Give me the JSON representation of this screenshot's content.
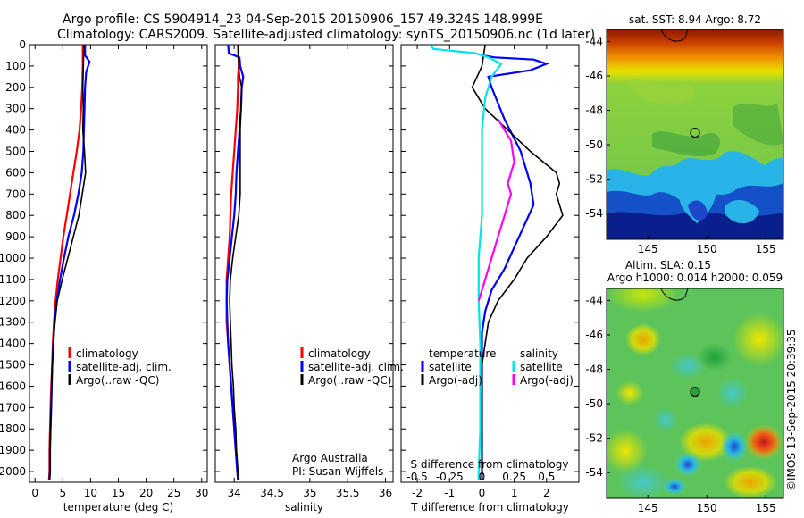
{
  "header": {
    "line1": "Argo profile: CS 5904914_23 04-Sep-2015 20150906_157 49.324S 148.999E",
    "line2": "Climatology: CARS2009. Satellite-adjusted climatology: synTS_20150906.nc (1d later)"
  },
  "credit": "©IMOS 13-Sep-2015 20:39:35",
  "notes": {
    "org": "Argo Australia",
    "pi": "PI: Susan Wijffels"
  },
  "colors": {
    "climatology": "#ff0000",
    "satellite": "#0000ff",
    "argo": "#000000",
    "cyan": "#00e5e5",
    "magenta": "#ff00ff"
  },
  "chart_data": [
    {
      "type": "line",
      "id": "temperature",
      "xlabel": "temperature (deg C)",
      "ylabel": "",
      "xlim": [
        -1,
        31
      ],
      "ylim": [
        0,
        2050
      ],
      "xticks": [
        0,
        5,
        10,
        15,
        20,
        25,
        30
      ],
      "yticks": [
        0,
        100,
        200,
        300,
        400,
        500,
        600,
        700,
        800,
        900,
        1000,
        1100,
        1200,
        1300,
        1400,
        1500,
        1600,
        1700,
        1800,
        1900,
        2000
      ],
      "legend": [
        "climatology",
        "satellite-adj. clim.",
        "Argo(..raw -QC)"
      ],
      "series": [
        {
          "name": "climatology",
          "color": "#ff0000",
          "points": [
            [
              8.6,
              0
            ],
            [
              8.6,
              100
            ],
            [
              8.5,
              200
            ],
            [
              8.3,
              300
            ],
            [
              8.0,
              400
            ],
            [
              7.5,
              500
            ],
            [
              6.9,
              600
            ],
            [
              6.3,
              700
            ],
            [
              5.7,
              800
            ],
            [
              5.1,
              900
            ],
            [
              4.6,
              1000
            ],
            [
              4.1,
              1100
            ],
            [
              3.7,
              1200
            ],
            [
              3.4,
              1300
            ],
            [
              3.2,
              1400
            ],
            [
              3.1,
              1500
            ],
            [
              2.9,
              1600
            ],
            [
              2.8,
              1700
            ],
            [
              2.7,
              1800
            ],
            [
              2.6,
              1900
            ],
            [
              2.6,
              2000
            ],
            [
              2.5,
              2040
            ]
          ]
        },
        {
          "name": "satellite-adj. clim.",
          "color": "#0000ff",
          "points": [
            [
              9.0,
              0
            ],
            [
              9.0,
              50
            ],
            [
              9.8,
              80
            ],
            [
              9.2,
              130
            ],
            [
              9.0,
              200
            ],
            [
              8.9,
              300
            ],
            [
              8.8,
              400
            ],
            [
              8.7,
              500
            ],
            [
              8.4,
              600
            ],
            [
              7.8,
              700
            ],
            [
              7.0,
              800
            ],
            [
              6.0,
              900
            ],
            [
              5.2,
              1000
            ],
            [
              4.5,
              1100
            ],
            [
              3.9,
              1200
            ],
            [
              3.5,
              1300
            ],
            [
              3.3,
              1400
            ],
            [
              3.1,
              1500
            ],
            [
              3.0,
              1600
            ],
            [
              2.9,
              1700
            ],
            [
              2.8,
              1800
            ],
            [
              2.7,
              1900
            ],
            [
              2.7,
              2000
            ],
            [
              2.6,
              2040
            ]
          ]
        },
        {
          "name": "Argo(..raw -QC)",
          "color": "#000000",
          "points": [
            [
              8.8,
              0
            ],
            [
              8.7,
              100
            ],
            [
              8.6,
              200
            ],
            [
              8.7,
              300
            ],
            [
              8.6,
              400
            ],
            [
              8.9,
              500
            ],
            [
              9.1,
              600
            ],
            [
              8.5,
              700
            ],
            [
              7.9,
              800
            ],
            [
              6.9,
              900
            ],
            [
              5.9,
              1000
            ],
            [
              4.9,
              1100
            ],
            [
              4.0,
              1200
            ],
            [
              3.6,
              1300
            ],
            [
              3.3,
              1400
            ],
            [
              3.1,
              1500
            ],
            [
              3.0,
              1600
            ],
            [
              2.9,
              1700
            ],
            [
              2.8,
              1800
            ],
            [
              2.7,
              1900
            ],
            [
              2.7,
              2000
            ],
            [
              2.6,
              2040
            ]
          ]
        }
      ]
    },
    {
      "type": "line",
      "id": "salinity",
      "xlabel": "salinity",
      "ylabel": "",
      "xlim": [
        33.75,
        36.1
      ],
      "ylim": [
        0,
        2050
      ],
      "xticks": [
        34,
        34.5,
        35,
        35.5,
        36
      ],
      "legend": [
        "climatology",
        "satellite-adj. clim.",
        "Argo(..raw -QC)"
      ],
      "series": [
        {
          "name": "climatology",
          "color": "#ff0000",
          "points": [
            [
              34.05,
              0
            ],
            [
              34.06,
              100
            ],
            [
              34.05,
              150
            ],
            [
              34.05,
              200
            ],
            [
              34.04,
              300
            ],
            [
              34.02,
              400
            ],
            [
              34.0,
              500
            ],
            [
              33.98,
              600
            ],
            [
              33.96,
              700
            ],
            [
              33.95,
              800
            ],
            [
              33.94,
              900
            ],
            [
              33.92,
              1000
            ],
            [
              33.9,
              1100
            ],
            [
              33.9,
              1200
            ],
            [
              33.9,
              1300
            ],
            [
              33.92,
              1400
            ],
            [
              33.94,
              1500
            ],
            [
              33.96,
              1600
            ],
            [
              33.98,
              1700
            ],
            [
              34.0,
              1800
            ],
            [
              34.02,
              1900
            ],
            [
              34.04,
              2000
            ],
            [
              34.06,
              2040
            ]
          ]
        },
        {
          "name": "satellite-adj. clim.",
          "color": "#0000ff",
          "points": [
            [
              33.92,
              0
            ],
            [
              33.93,
              40
            ],
            [
              34.07,
              60
            ],
            [
              34.08,
              100
            ],
            [
              34.12,
              150
            ],
            [
              34.1,
              200
            ],
            [
              34.09,
              300
            ],
            [
              34.07,
              400
            ],
            [
              34.05,
              500
            ],
            [
              34.03,
              600
            ],
            [
              34.02,
              700
            ],
            [
              34.0,
              800
            ],
            [
              33.97,
              900
            ],
            [
              33.94,
              1000
            ],
            [
              33.91,
              1100
            ],
            [
              33.9,
              1200
            ],
            [
              33.91,
              1300
            ],
            [
              33.92,
              1400
            ],
            [
              33.94,
              1500
            ],
            [
              33.96,
              1600
            ],
            [
              33.98,
              1700
            ],
            [
              34.0,
              1800
            ],
            [
              34.02,
              1900
            ],
            [
              34.04,
              2000
            ],
            [
              34.05,
              2040
            ]
          ]
        },
        {
          "name": "Argo(..raw -QC)",
          "color": "#000000",
          "points": [
            [
              34.05,
              0
            ],
            [
              34.06,
              100
            ],
            [
              34.07,
              150
            ],
            [
              34.1,
              200
            ],
            [
              34.09,
              300
            ],
            [
              34.08,
              400
            ],
            [
              34.08,
              500
            ],
            [
              34.08,
              600
            ],
            [
              34.08,
              700
            ],
            [
              34.06,
              800
            ],
            [
              34.02,
              900
            ],
            [
              33.98,
              1000
            ],
            [
              33.95,
              1100
            ],
            [
              33.94,
              1200
            ],
            [
              33.95,
              1300
            ],
            [
              33.96,
              1400
            ],
            [
              33.97,
              1500
            ],
            [
              33.99,
              1600
            ],
            [
              34.0,
              1700
            ],
            [
              34.02,
              1800
            ],
            [
              34.03,
              1900
            ],
            [
              34.05,
              2000
            ],
            [
              34.06,
              2040
            ]
          ]
        }
      ]
    },
    {
      "type": "line",
      "id": "differences",
      "xlabel": "T difference from climatology",
      "xlabel_top": "S difference from climatology",
      "ylabel": "",
      "xlim": [
        -2.5,
        3
      ],
      "ylim": [
        0,
        2050
      ],
      "xticks_t": [
        -2,
        -1,
        0,
        1,
        2
      ],
      "xticks_s": [
        -0.5,
        -0.25,
        0,
        0.25,
        0.5
      ],
      "legend_title_t": "temperature",
      "legend_title_s": "salinity",
      "legend_t": [
        "satellite",
        "Argo(-adj)"
      ],
      "legend_s": [
        "satellite",
        "Argo(-adj)"
      ],
      "series": [
        {
          "name": "T satellite",
          "color": "#0000ff",
          "points": [
            [
              0.0,
              50
            ],
            [
              0.4,
              60
            ],
            [
              1.6,
              70
            ],
            [
              2.0,
              90
            ],
            [
              1.5,
              120
            ],
            [
              0.2,
              150
            ],
            [
              0.3,
              200
            ],
            [
              0.7,
              350
            ],
            [
              1.2,
              500
            ],
            [
              1.5,
              650
            ],
            [
              1.6,
              750
            ],
            [
              1.3,
              850
            ],
            [
              1.0,
              950
            ],
            [
              0.7,
              1050
            ],
            [
              0.3,
              1150
            ],
            [
              0.1,
              1250
            ],
            [
              0.0,
              1350
            ],
            [
              0.0,
              1500
            ],
            [
              0.0,
              1700
            ],
            [
              0.0,
              1900
            ],
            [
              0.0,
              2040
            ]
          ]
        },
        {
          "name": "T Argo(-adj)",
          "color": "#000000",
          "points": [
            [
              0.1,
              0
            ],
            [
              0.0,
              100
            ],
            [
              -0.3,
              200
            ],
            [
              0.1,
              300
            ],
            [
              0.8,
              400
            ],
            [
              1.5,
              500
            ],
            [
              2.3,
              600
            ],
            [
              2.4,
              650
            ],
            [
              2.3,
              700
            ],
            [
              2.5,
              800
            ],
            [
              2.0,
              900
            ],
            [
              1.4,
              1000
            ],
            [
              1.0,
              1100
            ],
            [
              0.5,
              1200
            ],
            [
              0.2,
              1300
            ],
            [
              0.1,
              1400
            ],
            [
              0.0,
              1500
            ],
            [
              0.0,
              1700
            ],
            [
              0.0,
              1900
            ],
            [
              0.0,
              2040
            ]
          ]
        },
        {
          "name": "S satellite",
          "color": "#00e5e5",
          "points": [
            [
              -1.6,
              0
            ],
            [
              -1.5,
              20
            ],
            [
              -0.2,
              40
            ],
            [
              0.2,
              60
            ],
            [
              0.6,
              90
            ],
            [
              0.3,
              150
            ],
            [
              0.1,
              250
            ],
            [
              0.0,
              400
            ],
            [
              0.0,
              600
            ],
            [
              0.0,
              800
            ],
            [
              -0.1,
              1000
            ],
            [
              -0.1,
              1200
            ],
            [
              -0.05,
              1400
            ],
            [
              -0.05,
              1600
            ],
            [
              -0.05,
              1800
            ],
            [
              -0.1,
              2000
            ],
            [
              -0.1,
              2040
            ]
          ]
        },
        {
          "name": "S Argo(-adj)",
          "color": "#ff00ff",
          "points": [
            [
              0.5,
              350
            ],
            [
              0.9,
              450
            ],
            [
              1.0,
              550
            ],
            [
              0.8,
              650
            ],
            [
              0.9,
              700
            ],
            [
              0.7,
              800
            ],
            [
              0.5,
              900
            ],
            [
              0.3,
              1000
            ],
            [
              0.1,
              1100
            ],
            [
              -0.1,
              1200
            ]
          ]
        }
      ]
    },
    {
      "type": "heatmap",
      "id": "sst-map",
      "title": "sat. SST: 8.94 Argo: 8.72",
      "xlim": [
        141.5,
        156.5
      ],
      "ylim": [
        -55.5,
        -43.3
      ],
      "xticks": [
        145,
        150,
        155
      ],
      "yticks": [
        -44,
        -46,
        -48,
        -50,
        -52,
        -54
      ],
      "argo_position": [
        149,
        -49.3
      ]
    },
    {
      "type": "heatmap",
      "id": "sla-map",
      "title_line1": "Altim. SLA: 0.15",
      "title_line2": "Argo h1000: 0.014 h2000: 0.059",
      "xlim": [
        141.5,
        156.5
      ],
      "ylim": [
        -55.5,
        -43.3
      ],
      "xticks": [
        145,
        150,
        155
      ],
      "yticks": [
        -44,
        -46,
        -48,
        -50,
        -52,
        -54
      ],
      "argo_position": [
        149,
        -49.3
      ]
    }
  ]
}
